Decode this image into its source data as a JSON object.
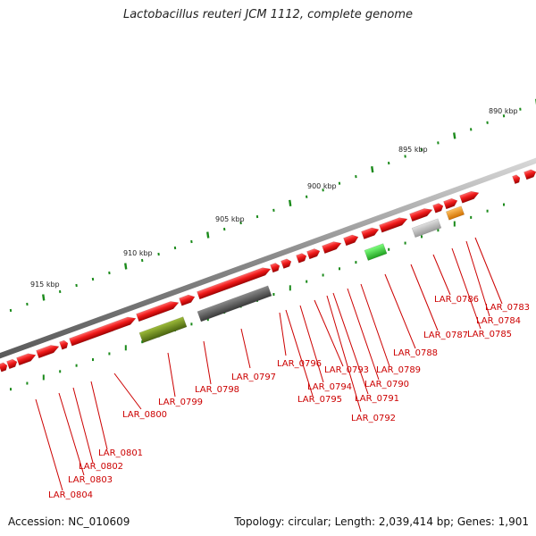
{
  "title": "Lactobacillus reuteri JCM 1112, complete genome",
  "accession_text": "Accession: NC_010609",
  "stats_text": "Topology: circular; Length: 2,039,414 bp; Genes: 1,901",
  "kbp_labels": [
    "890 kbp",
    "895 kbp",
    "900 kbp",
    "905 kbp",
    "910 kbp",
    "915 kbp"
  ],
  "gene_labels": [
    "LAR_0783",
    "LAR_0784",
    "LAR_0785",
    "LAR_0786",
    "LAR_0787",
    "LAR_0788",
    "LAR_0789",
    "LAR_0790",
    "LAR_0791",
    "LAR_0792",
    "LAR_0793",
    "LAR_0794",
    "LAR_0795",
    "LAR_0796",
    "LAR_0797",
    "LAR_0798",
    "LAR_0799",
    "LAR_0800",
    "LAR_0801",
    "LAR_0802",
    "LAR_0803",
    "LAR_0804"
  ],
  "colors": {
    "backbone": "#8a8a8a",
    "cds_red": "#e8141b",
    "olive": "#6e8f1f",
    "dark_gray": "#5a5a5a",
    "light_gray": "#b8b8b8",
    "lime": "#33cc33",
    "orange": "#f09010",
    "tick": "#1a8a1a",
    "label": "#cc0000"
  }
}
